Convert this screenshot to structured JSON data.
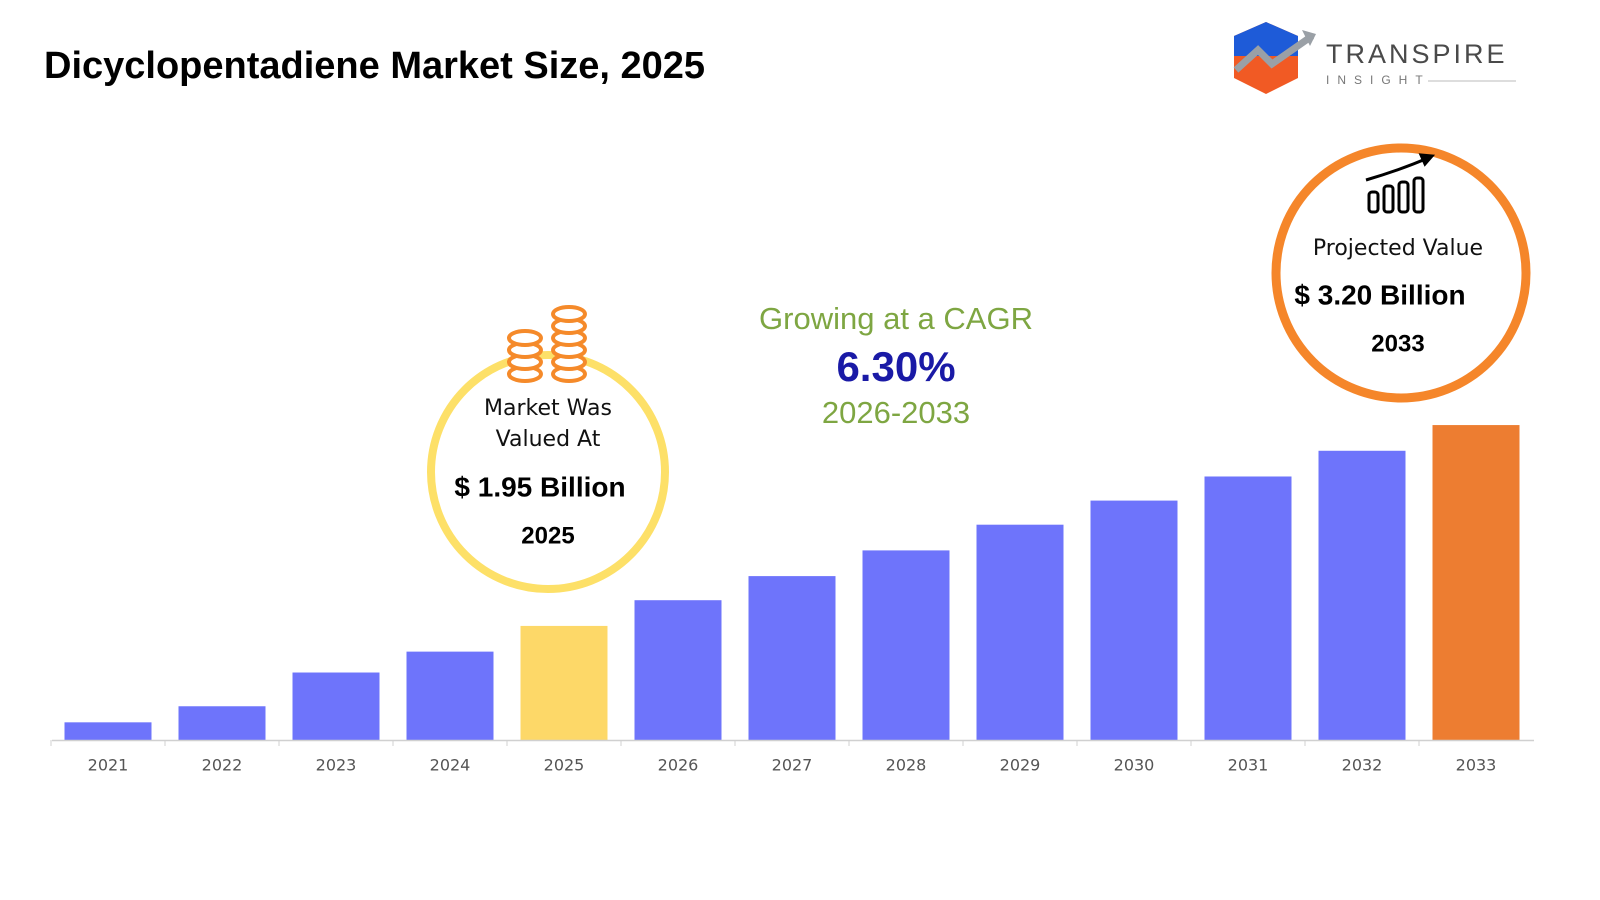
{
  "chart_data": {
    "type": "bar",
    "title": "Dicyclopentadiene Market Size, 2025",
    "categories": [
      "2021",
      "2022",
      "2023",
      "2024",
      "2025",
      "2026",
      "2027",
      "2028",
      "2029",
      "2030",
      "2031",
      "2032",
      "2033"
    ],
    "values": [
      1.35,
      1.45,
      1.66,
      1.79,
      1.95,
      2.11,
      2.26,
      2.42,
      2.58,
      2.73,
      2.88,
      3.04,
      3.2
    ],
    "value_labels": [
      null,
      null,
      null,
      null,
      "$ 1.95 Billion",
      null,
      null,
      null,
      null,
      null,
      null,
      null,
      "$ 3.20 Billion"
    ],
    "colors": [
      "#6e74fb",
      "#6e74fb",
      "#6e74fb",
      "#6e74fb",
      "#fdd868",
      "#6e74fb",
      "#6e74fb",
      "#6e74fb",
      "#6e74fb",
      "#6e74fb",
      "#6e74fb",
      "#6e74fb",
      "#ed7d31"
    ],
    "ylim": [
      1.24,
      3.3
    ],
    "annotations": {
      "past_label": [
        "Market Was",
        "Valued At"
      ],
      "projected_label": "Projected Value",
      "cagr_text": "Growing at a CAGR",
      "cagr": "6.30%",
      "cagr_period": "2026-2033"
    },
    "logo": {
      "name": "TRANSPIRE",
      "tagline": "INSIGHT"
    }
  }
}
